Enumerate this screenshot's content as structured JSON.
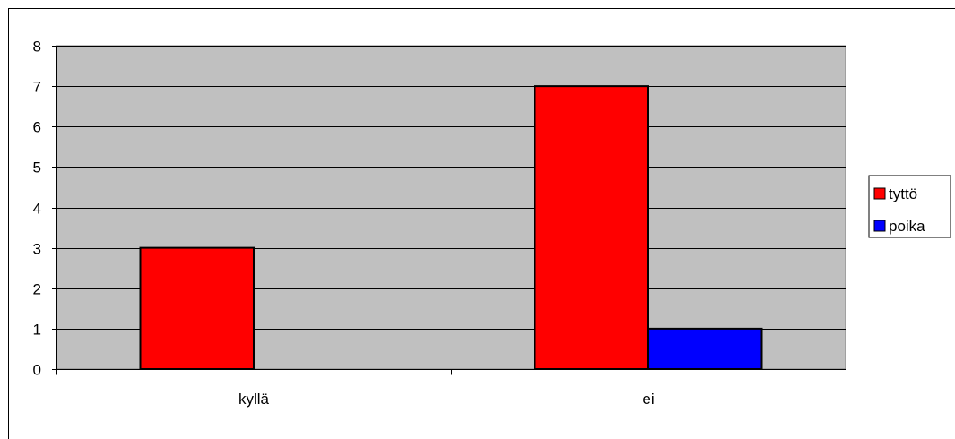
{
  "chart_data": {
    "type": "bar",
    "title": "",
    "xlabel": "",
    "ylabel": "",
    "categories": [
      "kyllä",
      "ei"
    ],
    "series": [
      {
        "name": "tyttö",
        "values": [
          3,
          7
        ],
        "color": "#ff0000"
      },
      {
        "name": "poika",
        "values": [
          0,
          1
        ],
        "color": "#0000ff"
      }
    ],
    "ylim": [
      0,
      8
    ],
    "yticks": [
      0,
      1,
      2,
      3,
      4,
      5,
      6,
      7,
      8
    ],
    "grid": true,
    "plot_background": "#c0c0c0",
    "legend_position": "right"
  }
}
